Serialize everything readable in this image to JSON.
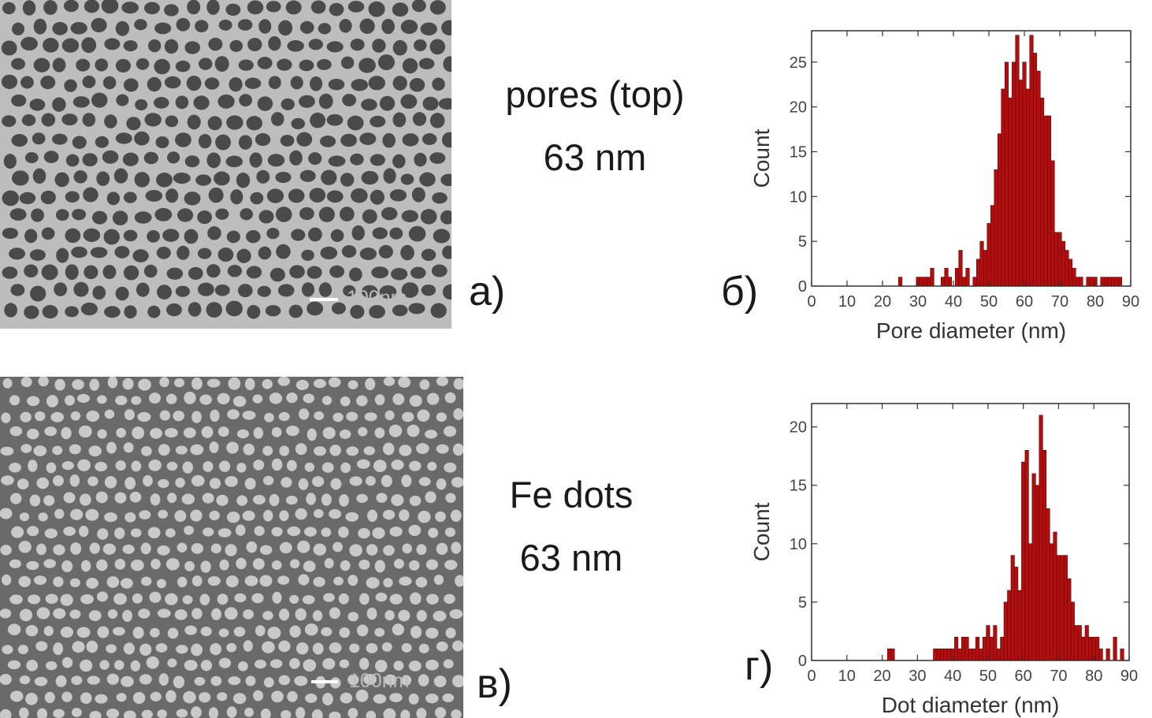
{
  "panels": {
    "a": {
      "label": "а)",
      "caption_line1": "pores (top)",
      "caption_line2": "63 nm",
      "scalebar": "100nm"
    },
    "b": {
      "label": "б)"
    },
    "c": {
      "label": "в)",
      "caption_line1": "Fe dots",
      "caption_line2": "63 nm",
      "scalebar": "100nm"
    },
    "d": {
      "label": "г)"
    }
  },
  "colors": {
    "bar": "#b00f0f",
    "bar_edge": "#6e0000",
    "pore": "#4a4a4a",
    "wall": "#bdbdbd",
    "dot": "#c9c9c9",
    "dot_bg": "#6a6a6a"
  },
  "chart_data": [
    {
      "type": "bar",
      "xlabel": "Pore diameter (nm)",
      "ylabel": "Count",
      "xlim": [
        0,
        90
      ],
      "ylim": [
        0,
        28.5
      ],
      "xticks": [
        0,
        10,
        20,
        30,
        40,
        50,
        60,
        70,
        80,
        90
      ],
      "yticks": [
        0,
        5,
        10,
        15,
        20,
        25
      ],
      "bin_width": 1,
      "x": [
        25,
        30,
        31,
        32,
        33,
        34,
        37,
        38,
        39,
        41,
        42,
        43,
        44,
        46,
        47,
        48,
        49,
        50,
        51,
        52,
        53,
        54,
        55,
        56,
        57,
        58,
        59,
        60,
        61,
        62,
        63,
        64,
        65,
        66,
        67,
        68,
        69,
        70,
        71,
        72,
        73,
        74,
        75,
        76,
        78,
        79,
        80,
        82,
        83,
        84,
        85,
        86,
        87
      ],
      "values": [
        1,
        1,
        1,
        1,
        1,
        2,
        1,
        2,
        1,
        2,
        4,
        1,
        2,
        1,
        3,
        5,
        4,
        7,
        9,
        13,
        17,
        22,
        25,
        21,
        25,
        28,
        23,
        25,
        22,
        28,
        26,
        24,
        21,
        19,
        19,
        14,
        6,
        6,
        5,
        4,
        3,
        2,
        1,
        1,
        1,
        1,
        1,
        1,
        1,
        1,
        1,
        1,
        1
      ]
    },
    {
      "type": "bar",
      "xlabel": "Dot diameter (nm)",
      "ylabel": "Count",
      "xlim": [
        0,
        90
      ],
      "ylim": [
        0,
        22
      ],
      "xticks": [
        0,
        10,
        20,
        30,
        40,
        50,
        60,
        70,
        80,
        90
      ],
      "yticks": [
        0,
        5,
        10,
        15,
        20
      ],
      "bin_width": 1,
      "x": [
        22,
        23,
        35,
        36,
        37,
        38,
        39,
        40,
        41,
        42,
        43,
        44,
        45,
        46,
        47,
        48,
        49,
        50,
        51,
        52,
        53,
        54,
        55,
        56,
        57,
        58,
        59,
        60,
        61,
        62,
        63,
        64,
        65,
        66,
        67,
        68,
        69,
        70,
        71,
        72,
        73,
        74,
        75,
        76,
        77,
        78,
        79,
        80,
        81,
        82,
        84,
        86,
        88
      ],
      "values": [
        1,
        1,
        1,
        1,
        1,
        1,
        1,
        1,
        2,
        1,
        2,
        2,
        1,
        1,
        2,
        1,
        2,
        3,
        2,
        3,
        1,
        2,
        5,
        6,
        9,
        8,
        6,
        17,
        18,
        10,
        16,
        15,
        21,
        18,
        13,
        10,
        11,
        9,
        9,
        9,
        7,
        5,
        3,
        3,
        2,
        3,
        2,
        2,
        2,
        1,
        1,
        2,
        1
      ]
    }
  ]
}
